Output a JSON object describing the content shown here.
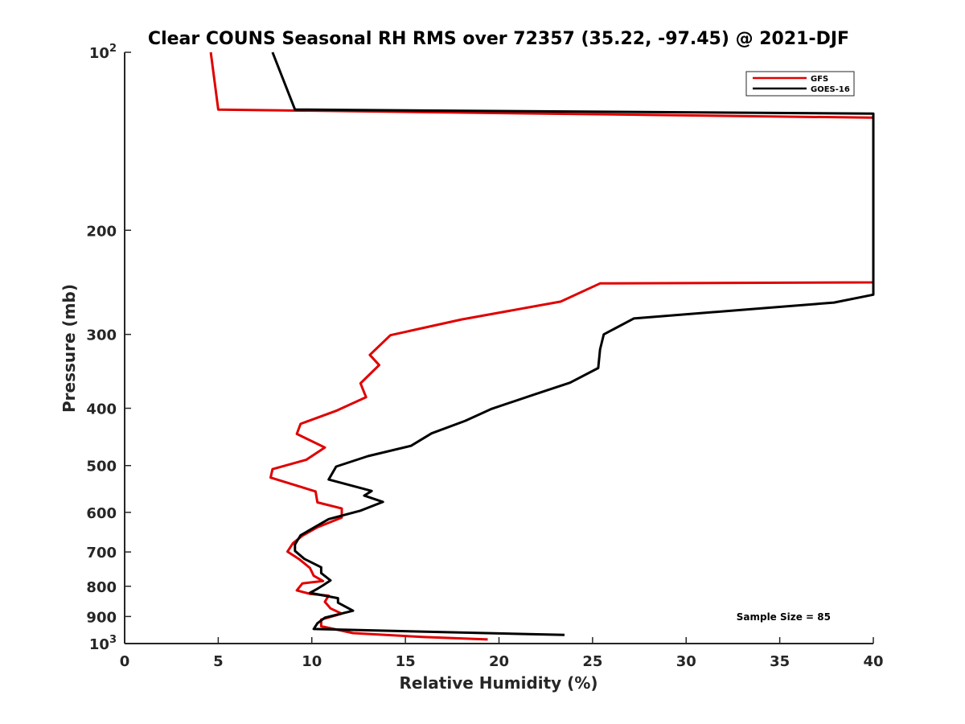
{
  "chart_data": {
    "type": "line",
    "title": "Clear COUNS Seasonal RH RMS over 72357 (35.22, -97.45) @ 2021-DJF",
    "xlabel": "Relative Humidity (%)",
    "ylabel": "Pressure (mb)",
    "xlim": [
      0,
      40
    ],
    "ylim": [
      100,
      1000
    ],
    "yscale": "log",
    "y_reversed": true,
    "grid": false,
    "x_ticks": [
      0,
      5,
      10,
      15,
      20,
      25,
      30,
      35,
      40
    ],
    "x_tick_labels": [
      "0",
      "5",
      "10",
      "15",
      "20",
      "25",
      "30",
      "35",
      "40"
    ],
    "y_ticks": [
      100,
      200,
      300,
      400,
      500,
      600,
      700,
      800,
      900,
      1000
    ],
    "y_tick_labels": [
      {
        "base": "10",
        "exp": "2"
      },
      {
        "base": "200",
        "exp": ""
      },
      {
        "base": "300",
        "exp": ""
      },
      {
        "base": "400",
        "exp": ""
      },
      {
        "base": "500",
        "exp": ""
      },
      {
        "base": "600",
        "exp": ""
      },
      {
        "base": "700",
        "exp": ""
      },
      {
        "base": "800",
        "exp": ""
      },
      {
        "base": "900",
        "exp": ""
      },
      {
        "base": "10",
        "exp": "3"
      }
    ],
    "legend": {
      "position": "top-right",
      "entries": [
        "GFS",
        "GOES-16"
      ]
    },
    "annotation": "Sample Size = 85",
    "series": [
      {
        "name": "GFS",
        "color": "#e00000",
        "points": [
          [
            4.6,
            100
          ],
          [
            5.0,
            125
          ],
          [
            40.0,
            129
          ],
          [
            40.0,
            245
          ],
          [
            25.4,
            246
          ],
          [
            23.3,
            264
          ],
          [
            18.0,
            283
          ],
          [
            14.2,
            301
          ],
          [
            13.1,
            325
          ],
          [
            13.6,
            338
          ],
          [
            12.6,
            363
          ],
          [
            12.9,
            383
          ],
          [
            11.3,
            404
          ],
          [
            9.4,
            425
          ],
          [
            9.2,
            442
          ],
          [
            10.7,
            466
          ],
          [
            9.7,
            489
          ],
          [
            7.9,
            507
          ],
          [
            7.8,
            524
          ],
          [
            10.2,
            553
          ],
          [
            10.3,
            577
          ],
          [
            11.6,
            591
          ],
          [
            11.6,
            612
          ],
          [
            10.3,
            636
          ],
          [
            9.5,
            657
          ],
          [
            9.0,
            676
          ],
          [
            8.7,
            699
          ],
          [
            9.3,
            719
          ],
          [
            9.9,
            745
          ],
          [
            10.1,
            768
          ],
          [
            10.6,
            784
          ],
          [
            9.5,
            791
          ],
          [
            9.2,
            813
          ],
          [
            9.9,
            824
          ],
          [
            10.9,
            830
          ],
          [
            10.7,
            850
          ],
          [
            11.0,
            872
          ],
          [
            11.6,
            890
          ],
          [
            10.5,
            911
          ],
          [
            10.5,
            935
          ],
          [
            12.2,
            960
          ],
          [
            16.0,
            975
          ],
          [
            19.4,
            984
          ]
        ]
      },
      {
        "name": "GOES-16",
        "color": "#000000",
        "points": [
          [
            7.9,
            100
          ],
          [
            9.1,
            125
          ],
          [
            40.0,
            127
          ],
          [
            40.0,
            257
          ],
          [
            37.9,
            265
          ],
          [
            27.2,
            282
          ],
          [
            25.6,
            300
          ],
          [
            25.4,
            318
          ],
          [
            25.3,
            342
          ],
          [
            23.8,
            362
          ],
          [
            21.9,
            379
          ],
          [
            19.6,
            401
          ],
          [
            18.2,
            420
          ],
          [
            16.4,
            441
          ],
          [
            15.3,
            463
          ],
          [
            13.0,
            482
          ],
          [
            11.3,
            502
          ],
          [
            10.9,
            528
          ],
          [
            13.2,
            552
          ],
          [
            12.8,
            562
          ],
          [
            13.8,
            576
          ],
          [
            12.6,
            596
          ],
          [
            10.9,
            616
          ],
          [
            9.4,
            656
          ],
          [
            9.1,
            680
          ],
          [
            9.1,
            697
          ],
          [
            9.6,
            719
          ],
          [
            10.5,
            743
          ],
          [
            10.5,
            760
          ],
          [
            11.0,
            782
          ],
          [
            10.6,
            797
          ],
          [
            10.3,
            808
          ],
          [
            9.9,
            821
          ],
          [
            11.4,
            838
          ],
          [
            11.4,
            853
          ],
          [
            12.2,
            880
          ],
          [
            10.7,
            904
          ],
          [
            10.3,
            924
          ],
          [
            10.1,
            945
          ],
          [
            23.5,
            967
          ]
        ]
      }
    ]
  }
}
